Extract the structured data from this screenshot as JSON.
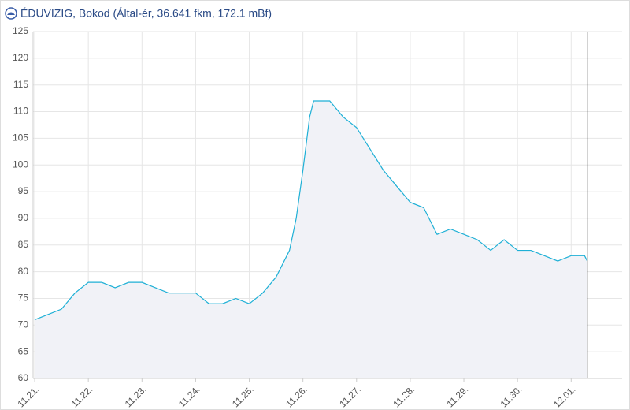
{
  "chart_data": {
    "type": "area",
    "title": "ÉDUVIZIG, Bokod (Által-ér, 36.641 fkm, 172.1 mBf)",
    "x": [
      0,
      0.25,
      0.5,
      0.75,
      1,
      1.25,
      1.5,
      1.75,
      2,
      2.25,
      2.5,
      2.75,
      3,
      3.25,
      3.5,
      3.75,
      4,
      4.25,
      4.5,
      4.75,
      4.875,
      5,
      5.125,
      5.2,
      5.25,
      5.5,
      5.75,
      6,
      6.25,
      6.5,
      6.75,
      7,
      7.25,
      7.5,
      7.75,
      8,
      8.25,
      8.5,
      8.75,
      9,
      9.25,
      9.5,
      9.75,
      10,
      10.25,
      10.3
    ],
    "series": [
      {
        "color": "#1fb0d6",
        "fill": "#f1f2f7",
        "values": [
          71,
          72,
          73,
          76,
          78,
          78,
          77,
          78,
          78,
          77,
          76,
          76,
          76,
          74,
          74,
          75,
          74,
          76,
          79,
          84,
          90,
          99,
          109,
          112,
          112,
          112,
          109,
          107,
          103,
          99,
          96,
          93,
          92,
          87,
          88,
          87,
          86,
          84,
          86,
          84,
          84,
          83,
          82,
          83,
          83,
          82
        ]
      }
    ],
    "xlim": [
      -0.03,
      10.95
    ],
    "xticks": [
      {
        "value": 0,
        "label": "11.21."
      },
      {
        "value": 1,
        "label": "11.22."
      },
      {
        "value": 2,
        "label": "11.23."
      },
      {
        "value": 3,
        "label": "11.24."
      },
      {
        "value": 4,
        "label": "11.25."
      },
      {
        "value": 5,
        "label": "11.26."
      },
      {
        "value": 6,
        "label": "11.27."
      },
      {
        "value": 7,
        "label": "11.28."
      },
      {
        "value": 8,
        "label": "11.29."
      },
      {
        "value": 9,
        "label": "11.30."
      },
      {
        "value": 10,
        "label": "12.01."
      }
    ],
    "ylim": [
      60,
      125
    ],
    "yticks": [
      60,
      65,
      70,
      75,
      80,
      85,
      90,
      95,
      100,
      105,
      110,
      115,
      120,
      125
    ],
    "grid": true
  }
}
